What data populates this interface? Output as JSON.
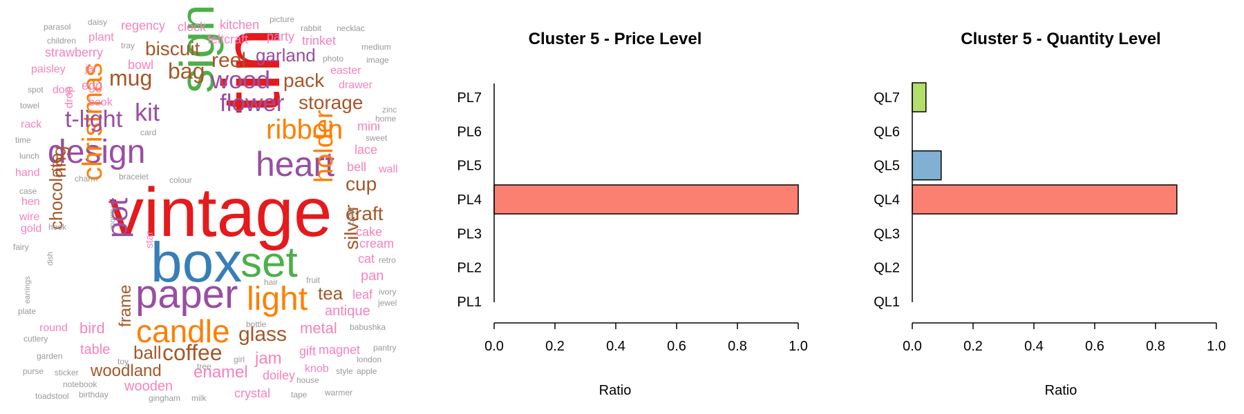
{
  "chart_data": [
    {
      "type": "wordcloud",
      "words": [
        {
          "text": "vintage",
          "color": "#e41a1c"
        },
        {
          "text": "box",
          "color": "#377eb8"
        },
        {
          "text": "tin",
          "color": "#e41a1c"
        },
        {
          "text": "sign",
          "color": "#4daf4a"
        },
        {
          "text": "set",
          "color": "#4daf4a"
        },
        {
          "text": "paper",
          "color": "#984ea3"
        },
        {
          "text": "heart",
          "color": "#984ea3"
        },
        {
          "text": "design",
          "color": "#984ea3"
        },
        {
          "text": "light",
          "color": "#ff7f00"
        },
        {
          "text": "candle",
          "color": "#ff7f00"
        },
        {
          "text": "christmas",
          "color": "#ff7f00"
        },
        {
          "text": "pot",
          "color": "#984ea3"
        },
        {
          "text": "holder",
          "color": "#ff7f00"
        },
        {
          "text": "ribbon",
          "color": "#ff7f00"
        },
        {
          "text": "t-light",
          "color": "#984ea3"
        },
        {
          "text": "flower",
          "color": "#984ea3"
        },
        {
          "text": "wood",
          "color": "#984ea3"
        },
        {
          "text": "kit",
          "color": "#984ea3"
        },
        {
          "text": "mug",
          "color": "#a65628"
        },
        {
          "text": "bag",
          "color": "#a65628"
        },
        {
          "text": "biscuit",
          "color": "#a65628"
        },
        {
          "text": "reel",
          "color": "#a65628"
        },
        {
          "text": "garland",
          "color": "#984ea3"
        },
        {
          "text": "pack",
          "color": "#a65628"
        },
        {
          "text": "storage",
          "color": "#a65628"
        },
        {
          "text": "cup",
          "color": "#a65628"
        },
        {
          "text": "craft",
          "color": "#a65628"
        },
        {
          "text": "ring",
          "color": "#a65628"
        },
        {
          "text": "chocolate",
          "color": "#a65628"
        },
        {
          "text": "silver",
          "color": "#a65628"
        },
        {
          "text": "tea",
          "color": "#a65628"
        },
        {
          "text": "coffee",
          "color": "#a65628"
        },
        {
          "text": "glass",
          "color": "#a65628"
        },
        {
          "text": "ball",
          "color": "#a65628"
        },
        {
          "text": "woodland",
          "color": "#a65628"
        },
        {
          "text": "frame",
          "color": "#a65628"
        },
        {
          "text": "enamel",
          "color": "#f781bf"
        },
        {
          "text": "jam",
          "color": "#f781bf"
        },
        {
          "text": "metal",
          "color": "#f781bf"
        },
        {
          "text": "bird",
          "color": "#f781bf"
        },
        {
          "text": "table",
          "color": "#f781bf"
        },
        {
          "text": "wooden",
          "color": "#f781bf"
        },
        {
          "text": "crystal",
          "color": "#f781bf"
        },
        {
          "text": "doiley",
          "color": "#f781bf"
        },
        {
          "text": "knob",
          "color": "#f781bf"
        },
        {
          "text": "gift",
          "color": "#f781bf"
        },
        {
          "text": "magnet",
          "color": "#f781bf"
        },
        {
          "text": "antique",
          "color": "#f781bf"
        },
        {
          "text": "leaf",
          "color": "#f781bf"
        },
        {
          "text": "pan",
          "color": "#f781bf"
        },
        {
          "text": "cat",
          "color": "#f781bf"
        },
        {
          "text": "cream",
          "color": "#f781bf"
        },
        {
          "text": "cake",
          "color": "#f781bf"
        },
        {
          "text": "lace",
          "color": "#f781bf"
        },
        {
          "text": "bell",
          "color": "#f781bf"
        },
        {
          "text": "wall",
          "color": "#f781bf"
        },
        {
          "text": "mini",
          "color": "#f781bf"
        },
        {
          "text": "drawer",
          "color": "#f781bf"
        },
        {
          "text": "easter",
          "color": "#f781bf"
        },
        {
          "text": "trinket",
          "color": "#f781bf"
        },
        {
          "text": "party",
          "color": "#f781bf"
        },
        {
          "text": "feltcraft",
          "color": "#f781bf"
        },
        {
          "text": "kitchen",
          "color": "#f781bf"
        },
        {
          "text": "clock",
          "color": "#f781bf"
        },
        {
          "text": "regency",
          "color": "#f781bf"
        },
        {
          "text": "plant",
          "color": "#f781bf"
        },
        {
          "text": "strawberry",
          "color": "#f781bf"
        },
        {
          "text": "bowl",
          "color": "#f781bf"
        },
        {
          "text": "paisley",
          "color": "#f781bf"
        },
        {
          "text": "jar",
          "color": "#f781bf"
        },
        {
          "text": "egg",
          "color": "#f781bf"
        },
        {
          "text": "dog",
          "color": "#f781bf"
        },
        {
          "text": "book",
          "color": "#f781bf"
        },
        {
          "text": "drop",
          "color": "#f781bf"
        },
        {
          "text": "rack",
          "color": "#f781bf"
        },
        {
          "text": "hand",
          "color": "#f781bf"
        },
        {
          "text": "hen",
          "color": "#f781bf"
        },
        {
          "text": "wire",
          "color": "#f781bf"
        },
        {
          "text": "gold",
          "color": "#f781bf"
        },
        {
          "text": "star",
          "color": "#f781bf"
        },
        {
          "text": "round",
          "color": "#f781bf"
        },
        {
          "text": "parasol",
          "color": "#999999"
        },
        {
          "text": "daisy",
          "color": "#999999"
        },
        {
          "text": "children",
          "color": "#999999"
        },
        {
          "text": "tray",
          "color": "#999999"
        },
        {
          "text": "picture",
          "color": "#999999"
        },
        {
          "text": "rabbit",
          "color": "#999999"
        },
        {
          "text": "necklac",
          "color": "#999999"
        },
        {
          "text": "medium",
          "color": "#999999"
        },
        {
          "text": "image",
          "color": "#999999"
        },
        {
          "text": "photo",
          "color": "#999999"
        },
        {
          "text": "spot",
          "color": "#999999"
        },
        {
          "text": "towel",
          "color": "#999999"
        },
        {
          "text": "zinc",
          "color": "#999999"
        },
        {
          "text": "home",
          "color": "#999999"
        },
        {
          "text": "sweet",
          "color": "#999999"
        },
        {
          "text": "card",
          "color": "#999999"
        },
        {
          "text": "time",
          "color": "#999999"
        },
        {
          "text": "lunch",
          "color": "#999999"
        },
        {
          "text": "charm",
          "color": "#999999"
        },
        {
          "text": "bracelet",
          "color": "#999999"
        },
        {
          "text": "colour",
          "color": "#999999"
        },
        {
          "text": "case",
          "color": "#999999"
        },
        {
          "text": "money",
          "color": "#999999"
        },
        {
          "text": "chick",
          "color": "#999999"
        },
        {
          "text": "hook",
          "color": "#999999"
        },
        {
          "text": "fairy",
          "color": "#999999"
        },
        {
          "text": "dish",
          "color": "#999999"
        },
        {
          "text": "earrings",
          "color": "#999999"
        },
        {
          "text": "retro",
          "color": "#999999"
        },
        {
          "text": "hair",
          "color": "#999999"
        },
        {
          "text": "fruit",
          "color": "#999999"
        },
        {
          "text": "ivory",
          "color": "#999999"
        },
        {
          "text": "jewel",
          "color": "#999999"
        },
        {
          "text": "plate",
          "color": "#999999"
        },
        {
          "text": "bottle",
          "color": "#999999"
        },
        {
          "text": "babushka",
          "color": "#999999"
        },
        {
          "text": "cutlery",
          "color": "#999999"
        },
        {
          "text": "garden",
          "color": "#999999"
        },
        {
          "text": "toy",
          "color": "#999999"
        },
        {
          "text": "tree",
          "color": "#999999"
        },
        {
          "text": "girl",
          "color": "#999999"
        },
        {
          "text": "pantry",
          "color": "#999999"
        },
        {
          "text": "london",
          "color": "#999999"
        },
        {
          "text": "purse",
          "color": "#999999"
        },
        {
          "text": "sticker",
          "color": "#999999"
        },
        {
          "text": "style",
          "color": "#999999"
        },
        {
          "text": "apple",
          "color": "#999999"
        },
        {
          "text": "house",
          "color": "#999999"
        },
        {
          "text": "notebook",
          "color": "#999999"
        },
        {
          "text": "warmer",
          "color": "#999999"
        },
        {
          "text": "tape",
          "color": "#999999"
        },
        {
          "text": "toadstool",
          "color": "#999999"
        },
        {
          "text": "birthday",
          "color": "#999999"
        },
        {
          "text": "gingham",
          "color": "#999999"
        },
        {
          "text": "milk",
          "color": "#999999"
        }
      ]
    },
    {
      "type": "bar",
      "orientation": "horizontal",
      "title": "Cluster 5 - Price Level",
      "xlabel": "Ratio",
      "categories": [
        "PL7",
        "PL6",
        "PL5",
        "PL4",
        "PL3",
        "PL2",
        "PL1"
      ],
      "values": [
        0,
        0,
        0,
        1.0,
        0,
        0,
        0
      ],
      "colors": [
        "#b3de69",
        "#b3de69",
        "#80b1d3",
        "#fb8072",
        "#fb8072",
        "#fb8072",
        "#fb8072"
      ],
      "xlim": [
        0,
        1.0
      ],
      "xticks": [
        "0.0",
        "0.2",
        "0.4",
        "0.6",
        "0.8",
        "1.0"
      ]
    },
    {
      "type": "bar",
      "orientation": "horizontal",
      "title": "Cluster 5 - Quantity Level",
      "xlabel": "Ratio",
      "categories": [
        "QL7",
        "QL6",
        "QL5",
        "QL4",
        "QL3",
        "QL2",
        "QL1"
      ],
      "values": [
        0.045,
        0,
        0.095,
        0.87,
        0,
        0,
        0
      ],
      "colors": [
        "#b3de69",
        "#b3de69",
        "#80b1d3",
        "#fb8072",
        "#fb8072",
        "#fb8072",
        "#fb8072"
      ],
      "xlim": [
        0,
        1.0
      ],
      "xticks": [
        "0.0",
        "0.2",
        "0.4",
        "0.6",
        "0.8",
        "1.0"
      ]
    }
  ]
}
